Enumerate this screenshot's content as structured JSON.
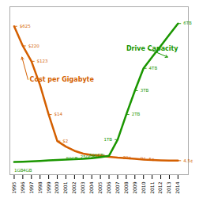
{
  "chart_data": {
    "type": "line",
    "x": [
      1995,
      1996,
      1997,
      1998,
      1999,
      2000,
      2001,
      2002,
      2003,
      2004,
      2005,
      2006,
      2007,
      2008,
      2009,
      2010,
      2011,
      2012,
      2013,
      2014
    ],
    "series": [
      {
        "name": "Cost per Gigabyte",
        "color": "#d45f00",
        "values": [
          0.98,
          0.84,
          0.73,
          0.56,
          0.35,
          0.16,
          0.12,
          0.09,
          0.07,
          0.06,
          0.055,
          0.048,
          0.042,
          0.038,
          0.033,
          0.028,
          0.025,
          0.022,
          0.02,
          0.02
        ],
        "label": {
          "x": 1996.8,
          "y": 0.6,
          "arrow_to": [
            1995.9,
            0.76
          ]
        },
        "point_labels": [
          {
            "x": 1995,
            "label": "$625",
            "side": "right"
          },
          {
            "x": 1996,
            "label": "$220",
            "side": "right"
          },
          {
            "x": 1997,
            "label": "$123",
            "side": "right"
          },
          {
            "x": 1999,
            "label": "$14",
            "side": "right"
          },
          {
            "x": 2000,
            "label": "$2",
            "side": "right"
          },
          {
            "x": 2004,
            "label": "60¢",
            "side": "right"
          },
          {
            "x": 2007,
            "label": "29¢",
            "side": "right"
          },
          {
            "x": 2009,
            "label": "9¢",
            "side": "right"
          },
          {
            "x": 2010,
            "label": "5¢",
            "side": "right"
          },
          {
            "x": 2014,
            "label": "4.5¢",
            "side": "right"
          }
        ]
      },
      {
        "name": "Drive Capacity",
        "color": "#1a9600",
        "values": [
          0.01,
          0.012,
          0.015,
          0.018,
          0.022,
          0.025,
          0.027,
          0.03,
          0.033,
          0.038,
          0.045,
          0.055,
          0.17,
          0.35,
          0.52,
          0.68,
          0.76,
          0.84,
          0.92,
          1.0
        ],
        "label": {
          "x": 2008.0,
          "y": 0.82,
          "arrow_to": [
            2012.8,
            0.76
          ]
        },
        "point_labels": [
          {
            "x": 2003,
            "label": "80GB",
            "side": "left"
          },
          {
            "x": 2005,
            "label": "250GB",
            "side": "left"
          },
          {
            "x": 2006,
            "label": "500GB",
            "side": "left"
          },
          {
            "x": 2007,
            "label": "1TB",
            "side": "left"
          },
          {
            "x": 2008,
            "label": "2TB",
            "side": "right"
          },
          {
            "x": 2009,
            "label": "3TB",
            "side": "right"
          },
          {
            "x": 2010,
            "label": "4TB",
            "side": "right"
          },
          {
            "x": 2014,
            "label": "6TB",
            "side": "right"
          }
        ]
      }
    ],
    "annotations": [
      {
        "x": 1995,
        "y": -0.04,
        "text": "1GB",
        "color": "#1a9600"
      },
      {
        "x": 1996,
        "y": -0.04,
        "text": "4GB",
        "color": "#1a9600"
      }
    ],
    "xlim": [
      1994.5,
      2015.2
    ],
    "xticks": [
      1995,
      1996,
      1997,
      1998,
      1999,
      2000,
      2001,
      2002,
      2003,
      2004,
      2005,
      2006,
      2007,
      2008,
      2009,
      2010,
      2011,
      2012,
      2013,
      2014
    ],
    "ylim": [
      -0.08,
      1.12
    ],
    "tick_labels": "x",
    "grid": false,
    "legend": false
  }
}
